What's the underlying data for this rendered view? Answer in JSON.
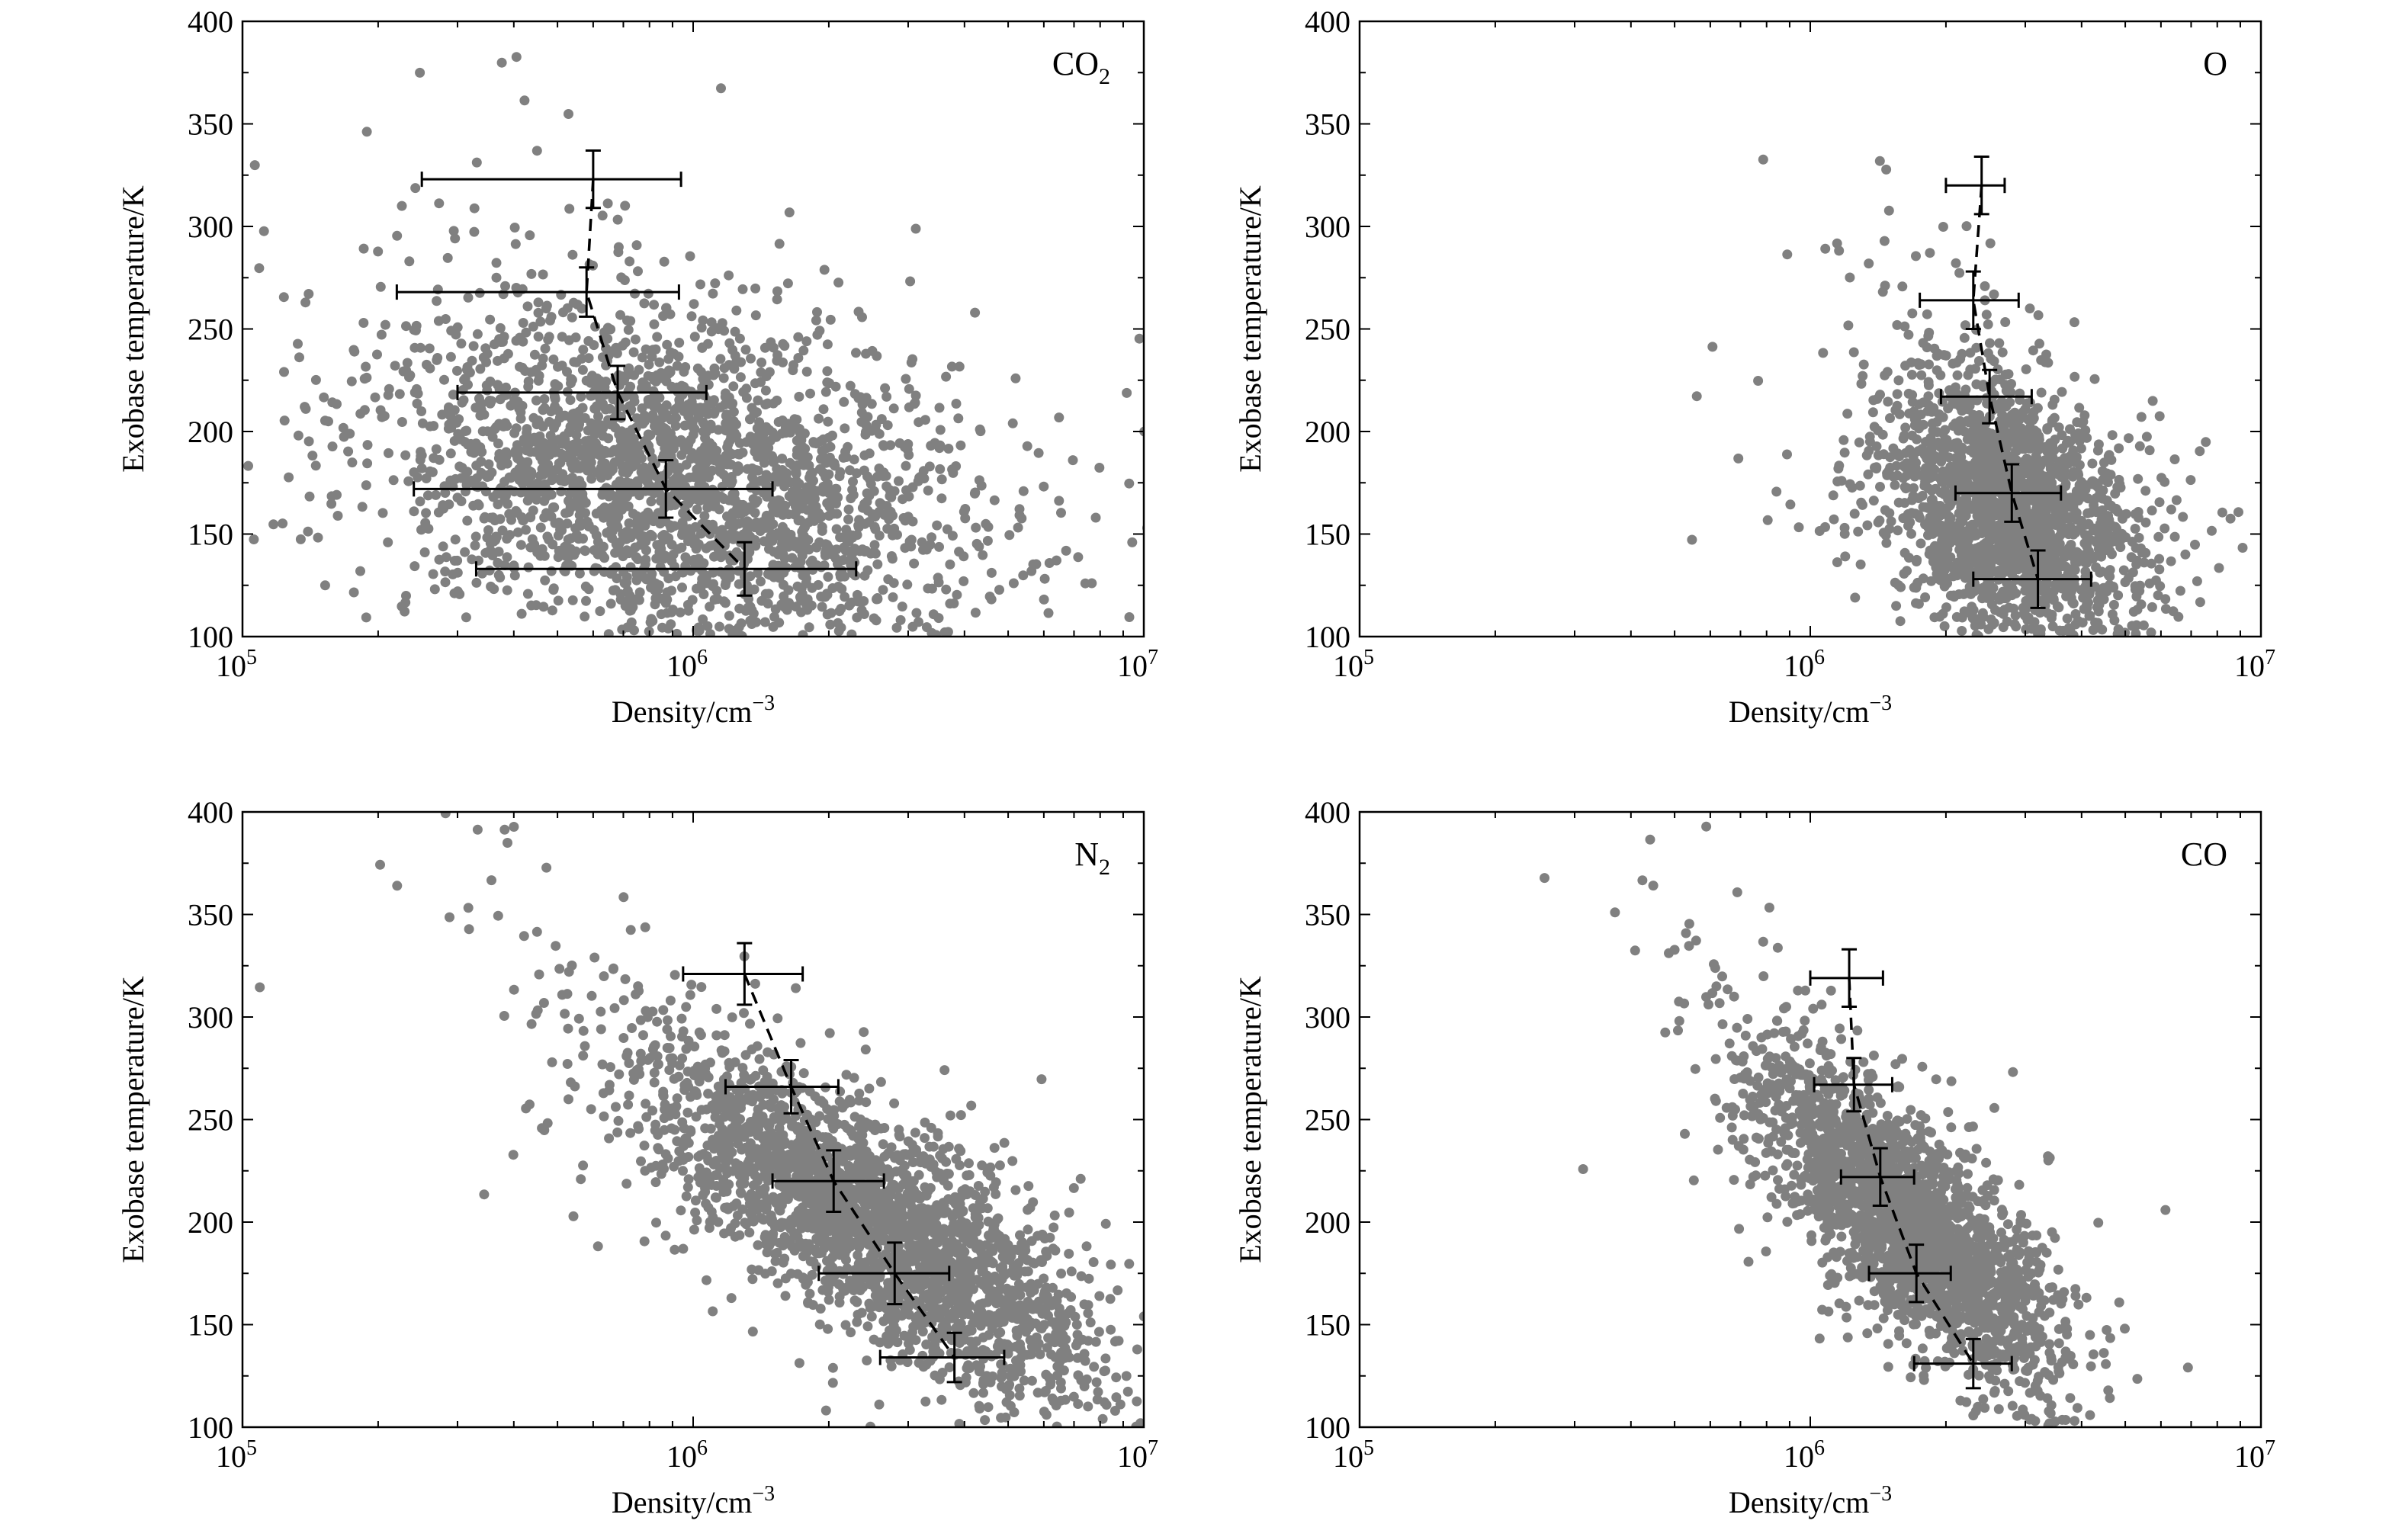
{
  "figure_labels": {
    "tick_sup": [
      "5",
      "6",
      "7"
    ],
    "density_unit_sup": "−3"
  },
  "chart_data": [
    {
      "type": "scatter",
      "panel": "CO2",
      "panel_label": {
        "main": "CO",
        "sub": "2"
      },
      "xlabel": "Density/cm",
      "ylabel": "Exobase temperature/K",
      "xscale": "log",
      "xlim": [
        100000,
        10000000
      ],
      "ylim": [
        100,
        400
      ],
      "x_ticks": [
        100000,
        1000000,
        10000000
      ],
      "x_tick_labels": [
        "10",
        "10",
        "10"
      ],
      "y_ticks": [
        100,
        150,
        200,
        250,
        300,
        350,
        400
      ],
      "y_tick_labels": [
        "100",
        "150",
        "200",
        "250",
        "300",
        "350",
        "400"
      ],
      "grid": false,
      "point_color": "#808080",
      "scatter_cloud": {
        "n_points": 2600,
        "center_x": 900000,
        "center_y": 175,
        "x_log_spread": 0.3,
        "y_spread": 55,
        "tilt": -0.0025
      },
      "binned_means": [
        {
          "x": 600000,
          "y": 323,
          "x_err": [
            250000,
            940000
          ],
          "y_err": 14
        },
        {
          "x": 580000,
          "y": 268,
          "x_err": [
            220000,
            930000
          ],
          "y_err": 12
        },
        {
          "x": 680000,
          "y": 219,
          "x_err": [
            300000,
            1070000
          ],
          "y_err": 13
        },
        {
          "x": 870000,
          "y": 172,
          "x_err": [
            240000,
            1500000
          ],
          "y_err": 14
        },
        {
          "x": 1300000,
          "y": 133,
          "x_err": [
            330000,
            2300000
          ],
          "y_err": 13
        }
      ]
    },
    {
      "type": "scatter",
      "panel": "O",
      "panel_label": {
        "main": "O",
        "sub": ""
      },
      "xlabel": "Density/cm",
      "ylabel": "Exobase temperature/K",
      "xscale": "log",
      "xlim": [
        100000,
        10000000
      ],
      "ylim": [
        100,
        400
      ],
      "x_ticks": [
        100000,
        1000000,
        10000000
      ],
      "x_tick_labels": [
        "10",
        "10",
        "10"
      ],
      "y_ticks": [
        100,
        150,
        200,
        250,
        300,
        350,
        400
      ],
      "y_tick_labels": [
        "100",
        "150",
        "200",
        "250",
        "300",
        "350",
        "400"
      ],
      "grid": false,
      "point_color": "#808080",
      "scatter_cloud": {
        "n_points": 2000,
        "center_x": 2800000,
        "center_y": 160,
        "x_log_spread": 0.13,
        "y_spread": 45,
        "tilt": -0.0012
      },
      "binned_means": [
        {
          "x": 2400000,
          "y": 320,
          "x_err": [
            2000000,
            2700000
          ],
          "y_err": 14
        },
        {
          "x": 2300000,
          "y": 264,
          "x_err": [
            1750000,
            2900000
          ],
          "y_err": 14
        },
        {
          "x": 2500000,
          "y": 217,
          "x_err": [
            1950000,
            3100000
          ],
          "y_err": 13
        },
        {
          "x": 2800000,
          "y": 170,
          "x_err": [
            2100000,
            3600000
          ],
          "y_err": 14
        },
        {
          "x": 3200000,
          "y": 128,
          "x_err": [
            2300000,
            4200000
          ],
          "y_err": 14
        }
      ]
    },
    {
      "type": "scatter",
      "panel": "N2",
      "panel_label": {
        "main": "N",
        "sub": "2"
      },
      "xlabel": "Density/cm",
      "ylabel": "Exobase temperature/K",
      "xscale": "log",
      "xlim": [
        100000,
        10000000
      ],
      "ylim": [
        100,
        400
      ],
      "x_ticks": [
        100000,
        1000000,
        10000000
      ],
      "x_tick_labels": [
        "10",
        "10",
        "10"
      ],
      "y_ticks": [
        100,
        150,
        200,
        250,
        300,
        350,
        400
      ],
      "y_tick_labels": [
        "100",
        "150",
        "200",
        "250",
        "300",
        "350",
        "400"
      ],
      "grid": false,
      "point_color": "#808080",
      "scatter_cloud": {
        "n_points": 2600,
        "center_x": 2500000,
        "center_y": 200,
        "x_log_spread": 0.16,
        "y_spread": 55,
        "tilt": -0.0045
      },
      "binned_means": [
        {
          "x": 1300000,
          "y": 321,
          "x_err": [
            950000,
            1750000
          ],
          "y_err": 15
        },
        {
          "x": 1650000,
          "y": 266,
          "x_err": [
            1180000,
            2100000
          ],
          "y_err": 13
        },
        {
          "x": 2050000,
          "y": 220,
          "x_err": [
            1500000,
            2650000
          ],
          "y_err": 15
        },
        {
          "x": 2800000,
          "y": 175,
          "x_err": [
            1900000,
            3700000
          ],
          "y_err": 15
        },
        {
          "x": 3800000,
          "y": 134,
          "x_err": [
            2600000,
            4900000
          ],
          "y_err": 12
        }
      ]
    },
    {
      "type": "scatter",
      "panel": "CO",
      "panel_label": {
        "main": "CO",
        "sub": ""
      },
      "xlabel": "Density/cm",
      "ylabel": "Exobase temperature/K",
      "xscale": "log",
      "xlim": [
        100000,
        10000000
      ],
      "ylim": [
        100,
        400
      ],
      "x_ticks": [
        100000,
        1000000,
        10000000
      ],
      "x_tick_labels": [
        "10",
        "10",
        "10"
      ],
      "y_ticks": [
        100,
        150,
        200,
        250,
        300,
        350,
        400
      ],
      "y_tick_labels": [
        "100",
        "150",
        "200",
        "250",
        "300",
        "350",
        "400"
      ],
      "grid": false,
      "point_color": "#808080",
      "scatter_cloud": {
        "n_points": 2300,
        "center_x": 1650000,
        "center_y": 200,
        "x_log_spread": 0.1,
        "y_spread": 50,
        "tilt": -0.0032
      },
      "binned_means": [
        {
          "x": 1220000,
          "y": 319,
          "x_err": [
            1000000,
            1450000
          ],
          "y_err": 14
        },
        {
          "x": 1250000,
          "y": 267,
          "x_err": [
            1020000,
            1520000
          ],
          "y_err": 13
        },
        {
          "x": 1430000,
          "y": 222,
          "x_err": [
            1170000,
            1700000
          ],
          "y_err": 14
        },
        {
          "x": 1720000,
          "y": 175,
          "x_err": [
            1350000,
            2050000
          ],
          "y_err": 14
        },
        {
          "x": 2300000,
          "y": 131,
          "x_err": [
            1700000,
            2800000
          ],
          "y_err": 12
        }
      ]
    }
  ]
}
